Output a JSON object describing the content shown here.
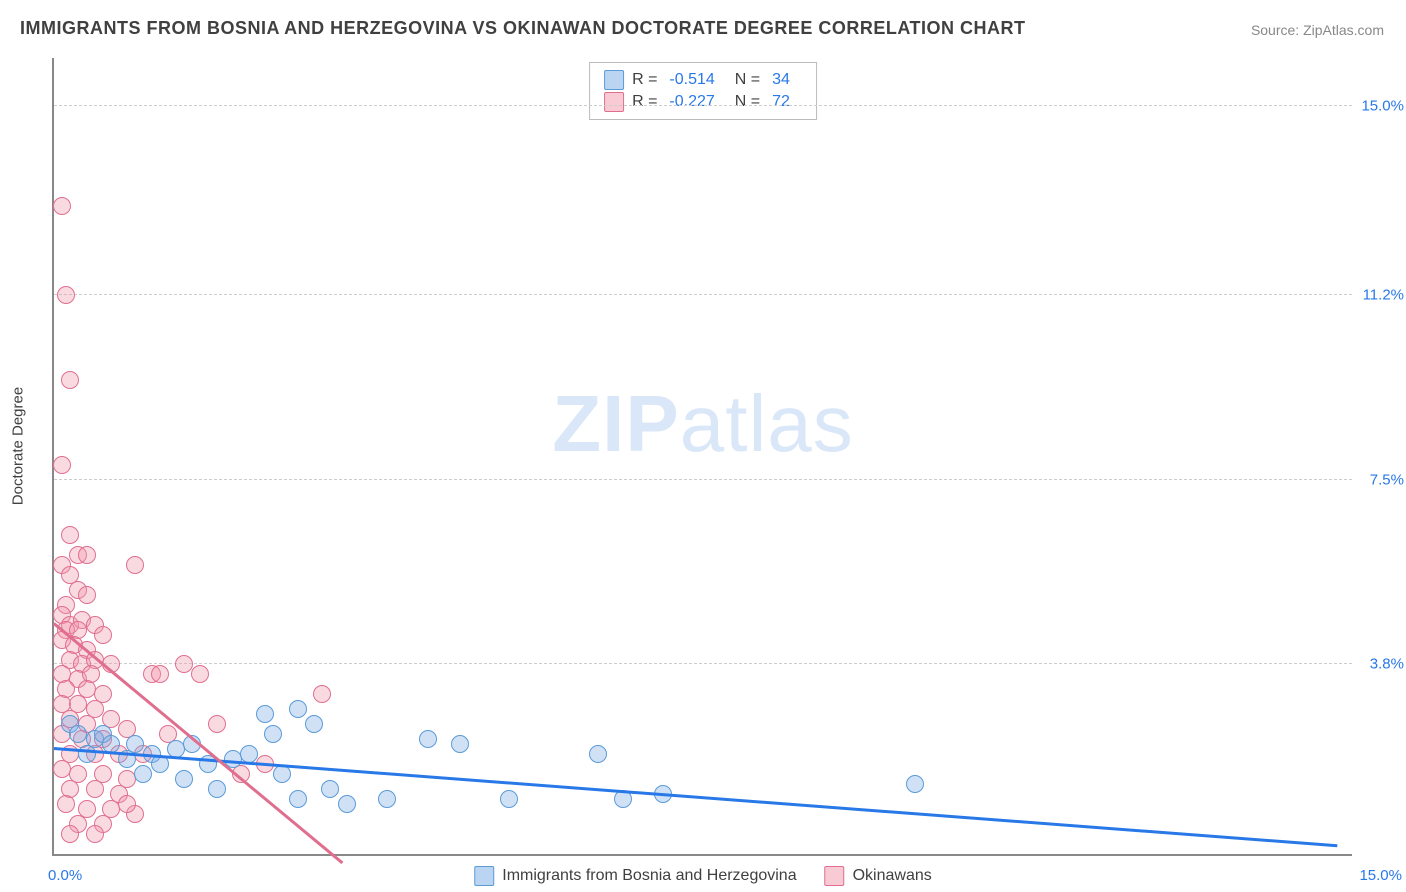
{
  "title": "IMMIGRANTS FROM BOSNIA AND HERZEGOVINA VS OKINAWAN DOCTORATE DEGREE CORRELATION CHART",
  "source": "Source: ZipAtlas.com",
  "ylabel": "Doctorate Degree",
  "watermark_bold": "ZIP",
  "watermark_rest": "atlas",
  "chart": {
    "type": "scatter",
    "xmin": 0.0,
    "xmax": 16.0,
    "ymin": 0.0,
    "ymax": 16.0,
    "grid_y": [
      3.8,
      7.5,
      11.2,
      15.0
    ],
    "ytick_labels": [
      "3.8%",
      "7.5%",
      "11.2%",
      "15.0%"
    ],
    "xtick_left": "0.0%",
    "xtick_right": "15.0%",
    "background": "#ffffff",
    "grid_color": "#cccccc",
    "axis_color": "#888888",
    "marker_radius": 9,
    "series": {
      "blue": {
        "label": "Immigrants from Bosnia and Herzegovina",
        "color_fill": "rgba(120,170,230,0.35)",
        "color_stroke": "#5a9bd8",
        "trend_color": "#2878e8",
        "R": "-0.514",
        "N": "34",
        "trend": {
          "x1": 0.0,
          "y1": 2.1,
          "x2": 15.8,
          "y2": 0.15
        },
        "points": [
          [
            0.2,
            2.6
          ],
          [
            0.3,
            2.4
          ],
          [
            0.4,
            2.0
          ],
          [
            0.5,
            2.3
          ],
          [
            0.6,
            2.4
          ],
          [
            0.7,
            2.2
          ],
          [
            0.9,
            1.9
          ],
          [
            1.0,
            2.2
          ],
          [
            1.1,
            1.6
          ],
          [
            1.2,
            2.0
          ],
          [
            1.3,
            1.8
          ],
          [
            1.5,
            2.1
          ],
          [
            1.6,
            1.5
          ],
          [
            1.7,
            2.2
          ],
          [
            1.9,
            1.8
          ],
          [
            2.0,
            1.3
          ],
          [
            2.2,
            1.9
          ],
          [
            2.4,
            2.0
          ],
          [
            2.6,
            2.8
          ],
          [
            2.7,
            2.4
          ],
          [
            2.8,
            1.6
          ],
          [
            3.0,
            2.9
          ],
          [
            3.2,
            2.6
          ],
          [
            3.0,
            1.1
          ],
          [
            3.4,
            1.3
          ],
          [
            3.6,
            1.0
          ],
          [
            4.1,
            1.1
          ],
          [
            4.6,
            2.3
          ],
          [
            5.0,
            2.2
          ],
          [
            5.6,
            1.1
          ],
          [
            6.7,
            2.0
          ],
          [
            7.0,
            1.1
          ],
          [
            7.5,
            1.2
          ],
          [
            10.6,
            1.4
          ]
        ]
      },
      "pink": {
        "label": "Okinawans",
        "color_fill": "rgba(240,150,170,0.35)",
        "color_stroke": "#e06f8f",
        "trend_color": "#e06f8f",
        "R": "-0.227",
        "N": "72",
        "trend": {
          "x1": 0.0,
          "y1": 4.6,
          "x2": 3.55,
          "y2": -0.2
        },
        "points": [
          [
            0.1,
            13.0
          ],
          [
            0.15,
            11.2
          ],
          [
            0.2,
            9.5
          ],
          [
            0.1,
            7.8
          ],
          [
            0.2,
            6.4
          ],
          [
            0.3,
            6.0
          ],
          [
            0.1,
            5.8
          ],
          [
            0.2,
            5.6
          ],
          [
            0.4,
            6.0
          ],
          [
            0.3,
            5.3
          ],
          [
            0.15,
            5.0
          ],
          [
            0.4,
            5.2
          ],
          [
            0.1,
            4.8
          ],
          [
            0.2,
            4.6
          ],
          [
            0.35,
            4.7
          ],
          [
            0.15,
            4.5
          ],
          [
            0.3,
            4.5
          ],
          [
            0.5,
            4.6
          ],
          [
            0.1,
            4.3
          ],
          [
            0.25,
            4.2
          ],
          [
            0.4,
            4.1
          ],
          [
            0.6,
            4.4
          ],
          [
            0.2,
            3.9
          ],
          [
            0.35,
            3.8
          ],
          [
            0.5,
            3.9
          ],
          [
            0.1,
            3.6
          ],
          [
            0.3,
            3.5
          ],
          [
            0.45,
            3.6
          ],
          [
            0.7,
            3.8
          ],
          [
            0.15,
            3.3
          ],
          [
            0.4,
            3.3
          ],
          [
            0.6,
            3.2
          ],
          [
            0.1,
            3.0
          ],
          [
            0.3,
            3.0
          ],
          [
            0.5,
            2.9
          ],
          [
            0.2,
            2.7
          ],
          [
            0.4,
            2.6
          ],
          [
            0.7,
            2.7
          ],
          [
            0.1,
            2.4
          ],
          [
            0.35,
            2.3
          ],
          [
            0.6,
            2.3
          ],
          [
            0.9,
            2.5
          ],
          [
            0.2,
            2.0
          ],
          [
            0.5,
            2.0
          ],
          [
            0.8,
            2.0
          ],
          [
            1.0,
            5.8
          ],
          [
            1.2,
            3.6
          ],
          [
            1.3,
            3.6
          ],
          [
            1.1,
            2.0
          ],
          [
            1.4,
            2.4
          ],
          [
            1.6,
            3.8
          ],
          [
            1.8,
            3.6
          ],
          [
            2.0,
            2.6
          ],
          [
            0.1,
            1.7
          ],
          [
            0.3,
            1.6
          ],
          [
            0.6,
            1.6
          ],
          [
            0.9,
            1.5
          ],
          [
            0.2,
            1.3
          ],
          [
            0.5,
            1.3
          ],
          [
            0.8,
            1.2
          ],
          [
            0.15,
            1.0
          ],
          [
            0.4,
            0.9
          ],
          [
            0.7,
            0.9
          ],
          [
            1.0,
            0.8
          ],
          [
            0.3,
            0.6
          ],
          [
            0.6,
            0.6
          ],
          [
            0.2,
            0.4
          ],
          [
            0.5,
            0.4
          ],
          [
            0.9,
            1.0
          ],
          [
            2.3,
            1.6
          ],
          [
            2.6,
            1.8
          ],
          [
            3.3,
            3.2
          ]
        ]
      }
    }
  },
  "legend_top": {
    "r_label": "R =",
    "n_label": "N ="
  }
}
